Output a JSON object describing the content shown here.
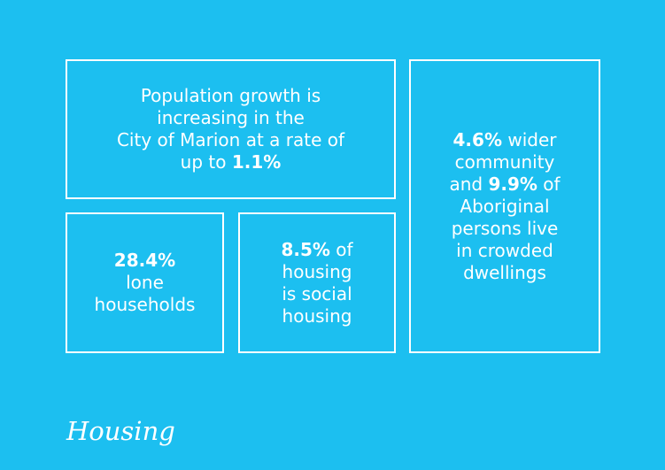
{
  "boxes": [
    {
      "lines": [
        [
          {
            "text": "Population growth is",
            "bold": false
          }
        ],
        [
          {
            "text": "increasing in the",
            "bold": false
          }
        ],
        [
          {
            "text": "City of Marion at a rate of",
            "bold": false
          }
        ],
        [
          {
            "text": "up to ",
            "bold": false
          },
          {
            "text": "1.1%",
            "bold": true
          }
        ]
      ]
    },
    {
      "lines": [
        [
          {
            "text": "28.4%",
            "bold": true
          }
        ],
        [
          {
            "text": "lone",
            "bold": false
          }
        ],
        [
          {
            "text": "households",
            "bold": false
          }
        ]
      ]
    },
    {
      "lines": [
        [
          {
            "text": "8.5%",
            "bold": true
          },
          {
            "text": " of",
            "bold": false
          }
        ],
        [
          {
            "text": "housing",
            "bold": false
          }
        ],
        [
          {
            "text": "is social",
            "bold": false
          }
        ],
        [
          {
            "text": "housing",
            "bold": false
          }
        ]
      ]
    },
    {
      "lines": [
        [
          {
            "text": "4.6%",
            "bold": true
          },
          {
            "text": " wider",
            "bold": false
          }
        ],
        [
          {
            "text": "community",
            "bold": false
          }
        ],
        [
          {
            "text": "and ",
            "bold": false
          },
          {
            "text": "9.9%",
            "bold": true
          },
          {
            "text": " of",
            "bold": false
          }
        ],
        [
          {
            "text": "Aboriginal",
            "bold": false
          }
        ],
        [
          {
            "text": "persons live",
            "bold": false
          }
        ],
        [
          {
            "text": "in crowded",
            "bold": false
          }
        ],
        [
          {
            "text": "dwellings",
            "bold": false
          }
        ]
      ]
    }
  ],
  "footer": {
    "title": "Housing"
  }
}
